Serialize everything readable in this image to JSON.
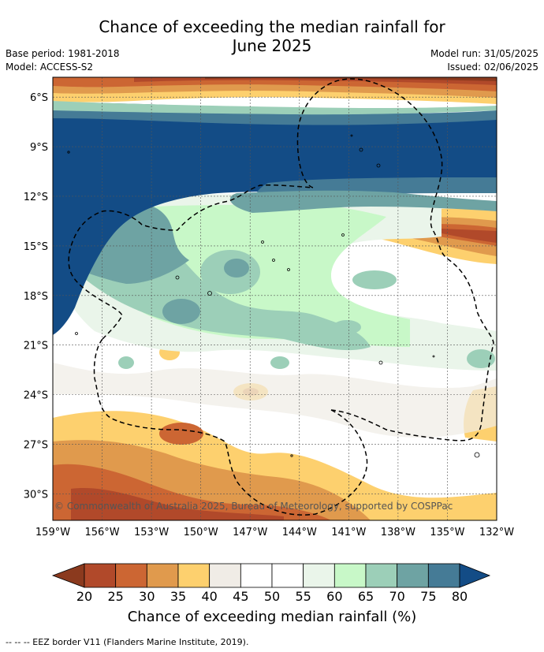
{
  "title_line1": "Chance of exceeding the median rainfall for",
  "title_line2": "June 2025",
  "meta": {
    "base_period": "Base period: 1981-2018",
    "model": "Model: ACCESS-S2",
    "model_run": "Model run: 31/05/2025",
    "issued": "Issued: 02/06/2025"
  },
  "credit": "© Commonwealth of Australia 2025, Bureau of Meteorology, supported by COSPPac",
  "lat_labels": [
    "6°S",
    "9°S",
    "12°S",
    "15°S",
    "18°S",
    "21°S",
    "24°S",
    "27°S",
    "30°S"
  ],
  "lat_values": [
    6,
    9,
    12,
    15,
    18,
    21,
    24,
    27,
    30
  ],
  "lon_labels": [
    "159°W",
    "156°W",
    "153°W",
    "150°W",
    "147°W",
    "144°W",
    "141°W",
    "138°W",
    "135°W",
    "132°W"
  ],
  "lon_values": [
    159,
    156,
    153,
    150,
    147,
    144,
    141,
    138,
    135,
    132
  ],
  "extent": {
    "lon_west": 159,
    "lon_east": 132,
    "lat_north": 4.8,
    "lat_south": 31.6
  },
  "colorbar": {
    "title": "Chance of exceeding median rainfall (%)",
    "labels": [
      "20",
      "25",
      "30",
      "35",
      "40",
      "45",
      "50",
      "55",
      "60",
      "65",
      "70",
      "75",
      "80"
    ],
    "colors": [
      "#8b3a1e",
      "#b1492a",
      "#cc6633",
      "#e09a4d",
      "#fdd06e",
      "#f0ece6",
      "#ffffff",
      "#ffffff",
      "#eaf5ea",
      "#c8f8c8",
      "#9ccfb8",
      "#6ea3a3",
      "#457b96",
      "#134c86"
    ]
  },
  "footer": "--  --  -- EEZ border V11 (Flanders Marine Institute, 2019)."
}
